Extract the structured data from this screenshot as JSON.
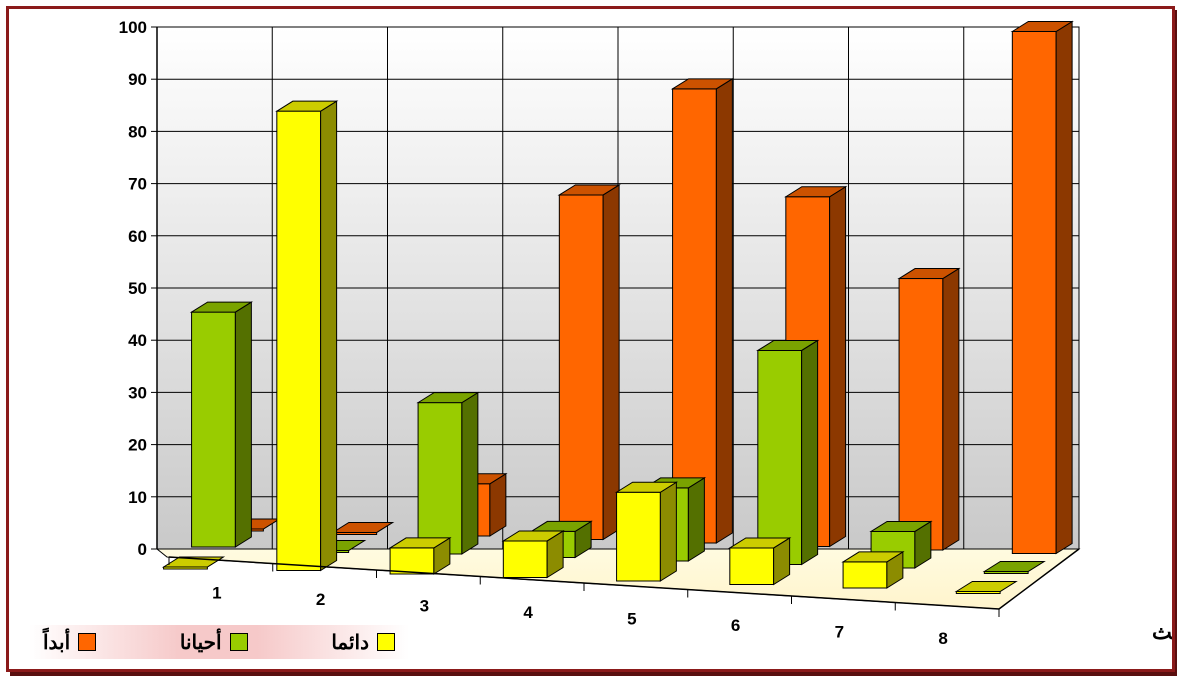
{
  "chart_data": {
    "type": "bar",
    "subtype": "3d-clustered-columns",
    "categories": [
      "1",
      "2",
      "3",
      "4",
      "5",
      "6",
      "7",
      "8"
    ],
    "ylim": [
      0,
      100
    ],
    "yticks": [
      "0",
      "10",
      "20",
      "30",
      "40",
      "50",
      "60",
      "70",
      "80",
      "90",
      "100"
    ],
    "xlabel": "المحور الثالث",
    "ylabel": "",
    "grid": true,
    "legend_position": "bottom-left",
    "series": [
      {
        "name": "دائما",
        "color": "#ffff00",
        "values": [
          0,
          88,
          5,
          7,
          17,
          7,
          5,
          0
        ]
      },
      {
        "name": "أحيانا",
        "color": "#99cc00",
        "values": [
          45,
          0,
          29,
          5,
          14,
          41,
          7,
          0
        ]
      },
      {
        "name": "أبداً",
        "color": "#ff6600",
        "values": [
          0,
          0,
          10,
          66,
          87,
          67,
          52,
          100
        ]
      }
    ]
  }
}
